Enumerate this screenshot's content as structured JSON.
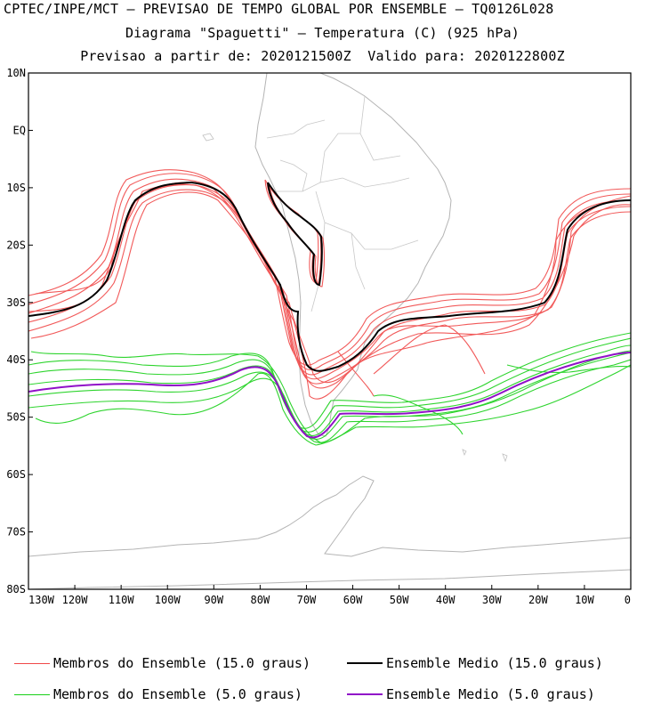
{
  "header": {
    "line1": "CPTEC/INPE/MCT – PREVISAO DE TEMPO GLOBAL POR ENSEMBLE – TQ0126L028",
    "line2": "Diagrama \"Spaguetti\" – Temperatura (C) (925 hPa)",
    "line3": "Previsao a partir de: 2020121500Z  Valido para: 2020122800Z"
  },
  "axes": {
    "lat_labels": [
      "10N",
      "EQ",
      "10S",
      "20S",
      "30S",
      "40S",
      "50S",
      "60S",
      "70S",
      "80S"
    ],
    "lon_labels": [
      "130W",
      "120W",
      "110W",
      "100W",
      "90W",
      "80W",
      "70W",
      "60W",
      "50W",
      "40W",
      "30W",
      "20W",
      "10W",
      "0"
    ]
  },
  "colors": {
    "members_15": "#f04848",
    "mean_15": "#000000",
    "members_5": "#18d018",
    "mean_5": "#9010c8",
    "land": "#b4b4b4"
  },
  "legend": [
    {
      "label": "Membros do Ensemble (15.0 graus)",
      "color": "#f04848"
    },
    {
      "label": "Ensemble Medio (15.0 graus)",
      "color": "#000000"
    },
    {
      "label": "Membros do Ensemble (5.0 graus)",
      "color": "#18d018"
    },
    {
      "label": "Ensemble Medio (5.0 graus)",
      "color": "#9010c8"
    }
  ]
}
